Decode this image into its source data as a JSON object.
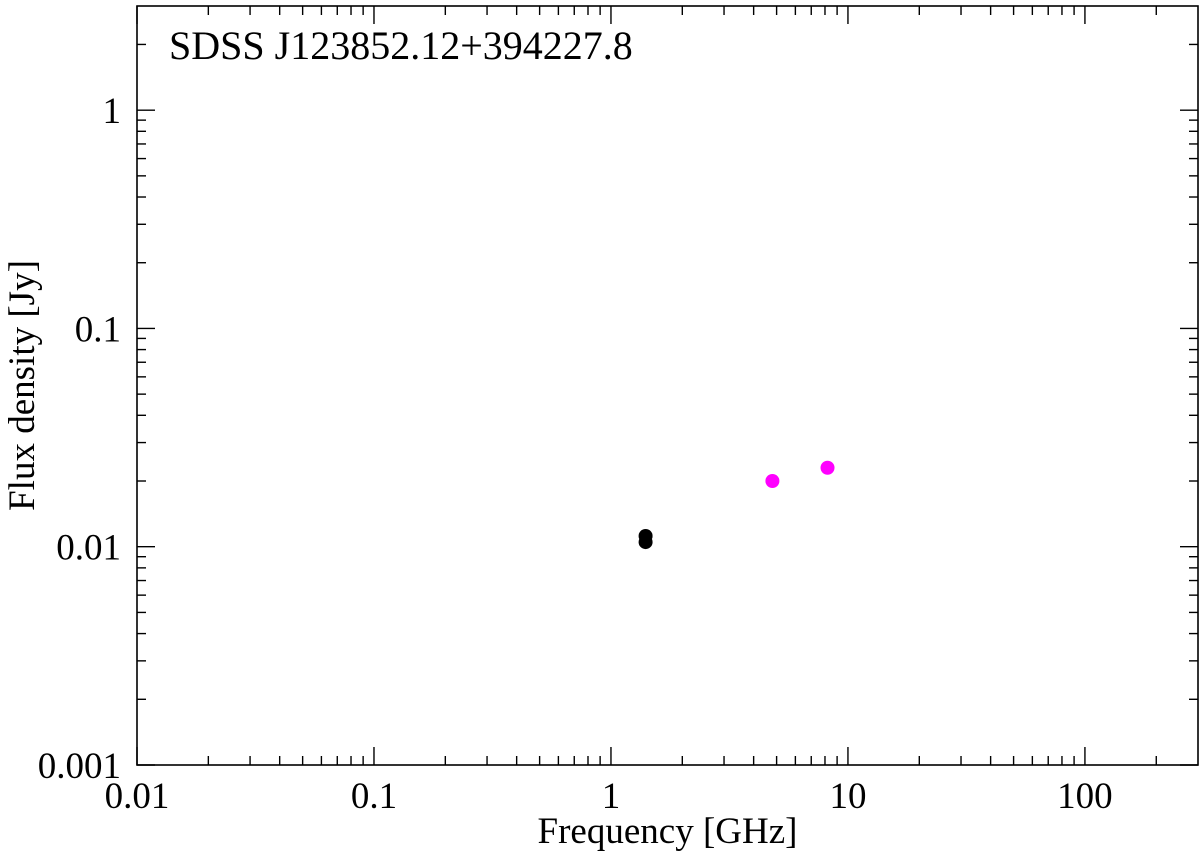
{
  "chart_data": {
    "type": "scatter",
    "title": "SDSS J123852.12+394227.8",
    "xlabel": "Frequency [GHz]",
    "ylabel": "Flux density [Jy]",
    "xscale": "log",
    "yscale": "log",
    "xlim": [
      0.01,
      300
    ],
    "ylim": [
      0.001,
      3
    ],
    "xticks": [
      {
        "value": 0.01,
        "label": "0.01"
      },
      {
        "value": 0.1,
        "label": "0.1"
      },
      {
        "value": 1,
        "label": "1"
      },
      {
        "value": 10,
        "label": "10"
      },
      {
        "value": 100,
        "label": "100"
      }
    ],
    "yticks": [
      {
        "value": 0.001,
        "label": "0.001"
      },
      {
        "value": 0.01,
        "label": "0.01"
      },
      {
        "value": 0.1,
        "label": "0.1"
      },
      {
        "value": 1,
        "label": "1"
      }
    ],
    "grid": false,
    "series": [
      {
        "color": "#000000",
        "points": [
          {
            "x": 1.4,
            "y": 0.0112
          },
          {
            "x": 1.4,
            "y": 0.0105
          }
        ]
      },
      {
        "color": "#ff00ff",
        "points": [
          {
            "x": 4.8,
            "y": 0.02
          },
          {
            "x": 8.2,
            "y": 0.023
          }
        ]
      }
    ]
  }
}
